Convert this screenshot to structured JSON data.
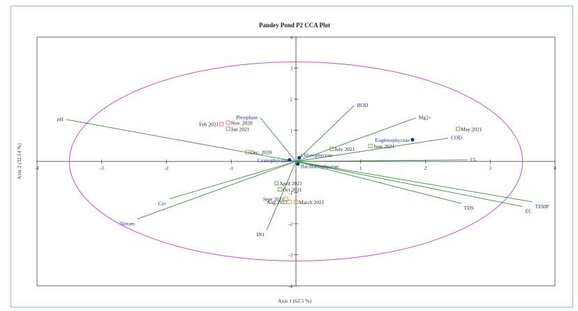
{
  "chart_data": {
    "type": "scatter",
    "subtype": "cca-biplot",
    "title": "Pandey Pond P2 CCA Plot",
    "xlabel": "Axis 1 (62.5 %)",
    "ylabel": "Axis 2 (32.14 %)",
    "xlim": [
      -4,
      4
    ],
    "ylim": [
      -4,
      4
    ],
    "xticks": [
      -4,
      -3,
      -2,
      -1,
      1,
      2,
      3,
      4
    ],
    "yticks": [
      4,
      3,
      2,
      1,
      -1,
      -2,
      -3,
      -4
    ],
    "grid": false,
    "colors": {
      "env_vector": "#3a8f3a",
      "ellipse": "#c84ec8",
      "species": "#1a2f9a",
      "sample": "#6b8f3a",
      "sample_pink": "#c85a8a",
      "sample_orange": "#d48a3a",
      "label": "#1f2f7a"
    },
    "environmental_vectors": [
      {
        "label": "pH",
        "x": -3.55,
        "y": 1.35
      },
      {
        "label": "Phosphate",
        "x": -0.55,
        "y": 1.4
      },
      {
        "label": "BOD",
        "x": 0.9,
        "y": 1.8
      },
      {
        "label": "Mg2+",
        "x": 1.85,
        "y": 1.4
      },
      {
        "label": "COD",
        "x": 2.35,
        "y": 0.75
      },
      {
        "label": "Cl-",
        "x": 2.65,
        "y": 0.05
      },
      {
        "label": "TDS",
        "x": 2.55,
        "y": -1.35
      },
      {
        "label": "EC",
        "x": 3.5,
        "y": -1.45
      },
      {
        "label": "TEMP",
        "x": 3.65,
        "y": -1.3
      },
      {
        "label": "Ca+",
        "x": -1.95,
        "y": -1.2
      },
      {
        "label": "Nitrate",
        "x": -2.45,
        "y": -1.85
      },
      {
        "label": "DO",
        "x": -0.45,
        "y": -2.2
      }
    ],
    "samples": [
      {
        "label": "Nov. 2020",
        "x": -1.05,
        "y": 1.25
      },
      {
        "label": "Feb 2021",
        "x": -1.15,
        "y": 1.2
      },
      {
        "label": "Jan 2021",
        "x": -1.05,
        "y": 1.05
      },
      {
        "label": "Dec. 2020",
        "x": -0.75,
        "y": 0.3
      },
      {
        "label": "July 2021",
        "x": 0.55,
        "y": 0.4
      },
      {
        "label": "June 2021",
        "x": 1.15,
        "y": 0.5
      },
      {
        "label": "May 2021",
        "x": 2.5,
        "y": 1.05
      },
      {
        "label": "April 2021",
        "x": -0.3,
        "y": -0.7
      },
      {
        "label": "Oct 2021",
        "x": -0.25,
        "y": -0.9
      },
      {
        "label": "Sept 2021",
        "x": -0.15,
        "y": -1.2
      },
      {
        "label": "Aug 2021",
        "x": -0.1,
        "y": -1.3
      },
      {
        "label": "March 2021",
        "x": 0.0,
        "y": -1.3
      }
    ],
    "species": [
      {
        "label": "Euglenophyceae",
        "x": 1.8,
        "y": 0.7
      },
      {
        "label": "Chlorophyceae",
        "x": 0.05,
        "y": 0.12
      },
      {
        "label": "Cyanophyceae",
        "x": -0.1,
        "y": 0.05
      },
      {
        "label": "Bacillariophyceae",
        "x": 0.03,
        "y": -0.08
      }
    ],
    "ellipse": {
      "cx": 0.0,
      "cy": 0.0,
      "rx": 3.5,
      "ry": 3.2
    }
  }
}
